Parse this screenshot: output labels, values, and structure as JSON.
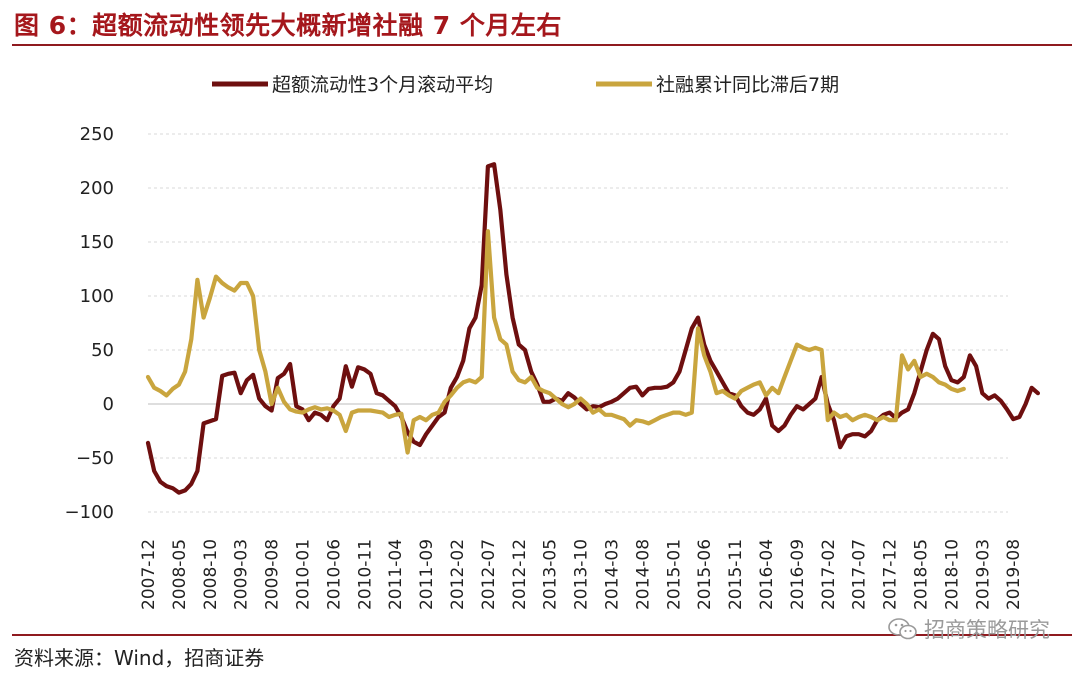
{
  "header": {
    "title": "图 6：超额流动性领先大概新增社融 7 个月左右"
  },
  "footer": {
    "source": "资料来源：Wind，招商证券",
    "watermark": "招商策略研究"
  },
  "colors": {
    "excess_liquidity": "#6e0f0f",
    "social_financing": "#c9a53e",
    "title": "#a5171c",
    "grid": "#d9d9d9"
  },
  "chart_data": {
    "type": "line",
    "title": "图 6：超额流动性领先大概新增社融 7 个月左右",
    "xlabel": "",
    "ylabel": "",
    "ylim": [
      -100,
      250
    ],
    "yticks": [
      250,
      200,
      150,
      100,
      50,
      0,
      -50,
      -100
    ],
    "ytick_labels": [
      "250",
      "200",
      "150",
      "100",
      "50",
      "0",
      "−50",
      "−100"
    ],
    "legend_position": "top",
    "grid": true,
    "x_start": "2007-12",
    "xtick_labels": [
      "2007-12",
      "2008-05",
      "2008-10",
      "2009-03",
      "2009-08",
      "2010-01",
      "2010-06",
      "2010-11",
      "2011-04",
      "2011-09",
      "2012-02",
      "2012-07",
      "2012-12",
      "2013-05",
      "2013-10",
      "2014-03",
      "2014-08",
      "2015-01",
      "2015-06",
      "2015-11",
      "2016-04",
      "2016-09",
      "2017-02",
      "2017-07",
      "2017-12",
      "2018-05",
      "2018-10",
      "2019-03",
      "2019-08"
    ],
    "series": [
      {
        "name": "超额流动性3个月滚动平均",
        "color": "#6e0f0f",
        "values": [
          -36,
          -62,
          -72,
          -76,
          -78,
          -82,
          -80,
          -74,
          -62,
          -18,
          -16,
          -14,
          26,
          28,
          29,
          10,
          22,
          27,
          5,
          -2,
          -6,
          24,
          28,
          37,
          -2,
          -5,
          -15,
          -8,
          -10,
          -15,
          -2,
          5,
          35,
          16,
          34,
          32,
          28,
          10,
          8,
          3,
          -2,
          -12,
          -26,
          -35,
          -38,
          -28,
          -20,
          -12,
          -8,
          15,
          25,
          40,
          70,
          80,
          110,
          220,
          222,
          180,
          120,
          80,
          55,
          50,
          30,
          18,
          2,
          2,
          5,
          3,
          10,
          6,
          0,
          -5,
          -2,
          -3,
          0,
          2,
          5,
          10,
          15,
          16,
          8,
          14,
          15,
          15,
          16,
          20,
          30,
          50,
          70,
          80,
          55,
          40,
          30,
          20,
          10,
          8,
          -2,
          -8,
          -10,
          -5,
          5,
          -20,
          -25,
          -20,
          -10,
          -2,
          -5,
          0,
          5,
          25,
          0,
          -15,
          -40,
          -30,
          -28,
          -28,
          -30,
          -25,
          -15,
          -10,
          -8,
          -13,
          -8,
          -5,
          10,
          30,
          50,
          65,
          60,
          35,
          22,
          20,
          25,
          45,
          35,
          10,
          5,
          8,
          3,
          -5,
          -14,
          -12,
          0,
          15,
          10
        ]
      },
      {
        "name": "社融累计同比滞后7期",
        "color": "#c9a53e",
        "values": [
          25,
          15,
          12,
          8,
          14,
          18,
          30,
          60,
          115,
          80,
          98,
          118,
          112,
          108,
          105,
          112,
          112,
          100,
          50,
          30,
          0,
          15,
          2,
          -5,
          -7,
          -8,
          -5,
          -3,
          -5,
          -4,
          -6,
          -10,
          -25,
          -8,
          -6,
          -6,
          -6,
          -7,
          -8,
          -12,
          -10,
          -9,
          -45,
          -15,
          -12,
          -15,
          -10,
          -8,
          2,
          8,
          15,
          20,
          22,
          20,
          25,
          160,
          80,
          60,
          55,
          30,
          22,
          20,
          25,
          15,
          12,
          10,
          5,
          0,
          -3,
          0,
          5,
          0,
          -8,
          -5,
          -10,
          -10,
          -12,
          -14,
          -20,
          -15,
          -16,
          -18,
          -15,
          -12,
          -10,
          -8,
          -8,
          -10,
          -8,
          70,
          45,
          30,
          10,
          12,
          8,
          5,
          12,
          15,
          18,
          20,
          8,
          15,
          10,
          25,
          40,
          55,
          52,
          50,
          52,
          50,
          -15,
          -8,
          -12,
          -10,
          -15,
          -12,
          -10,
          -12,
          -15,
          -12,
          -15,
          -15,
          45,
          32,
          40,
          25,
          28,
          25,
          20,
          18,
          14,
          12,
          14
        ]
      }
    ]
  }
}
